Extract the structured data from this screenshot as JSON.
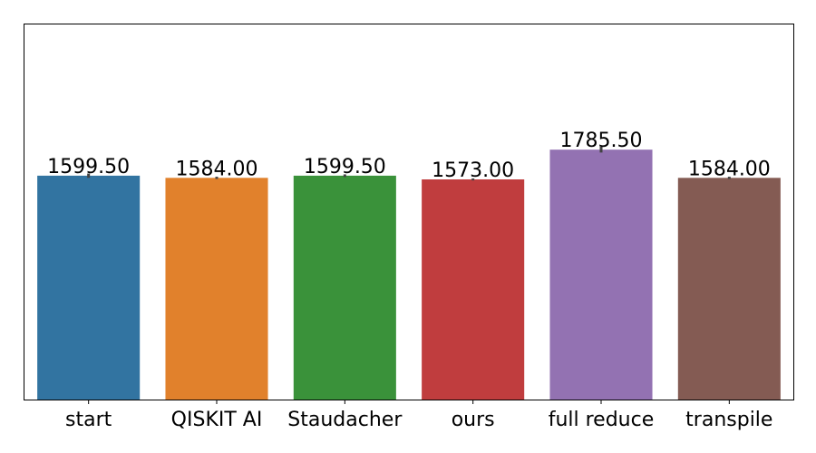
{
  "chart_data": {
    "type": "bar",
    "title": "",
    "xlabel": "",
    "ylabel": "",
    "categories": [
      "start",
      "QISKIT AI",
      "Staudacher",
      "ours",
      "full reduce",
      "transpile"
    ],
    "values": [
      1599.5,
      1584.0,
      1599.5,
      1573.0,
      1785.5,
      1584.0
    ],
    "value_labels": [
      "1599.50",
      "1584.00",
      "1599.50",
      "1573.00",
      "1785.50",
      "1584.00"
    ],
    "error_bars": [
      [
        1584,
        1615
      ],
      [
        1576,
        1592
      ],
      [
        1590,
        1609
      ],
      [
        1566,
        1580
      ],
      [
        1765,
        1806
      ],
      [
        1576,
        1592
      ]
    ],
    "colors": [
      "#3274a1",
      "#e1812c",
      "#3a923a",
      "#c03d3e",
      "#9372b2",
      "#845b53"
    ],
    "ylim": [
      0,
      2680
    ],
    "yticks_visible": false,
    "grid": false,
    "legend": "none"
  }
}
